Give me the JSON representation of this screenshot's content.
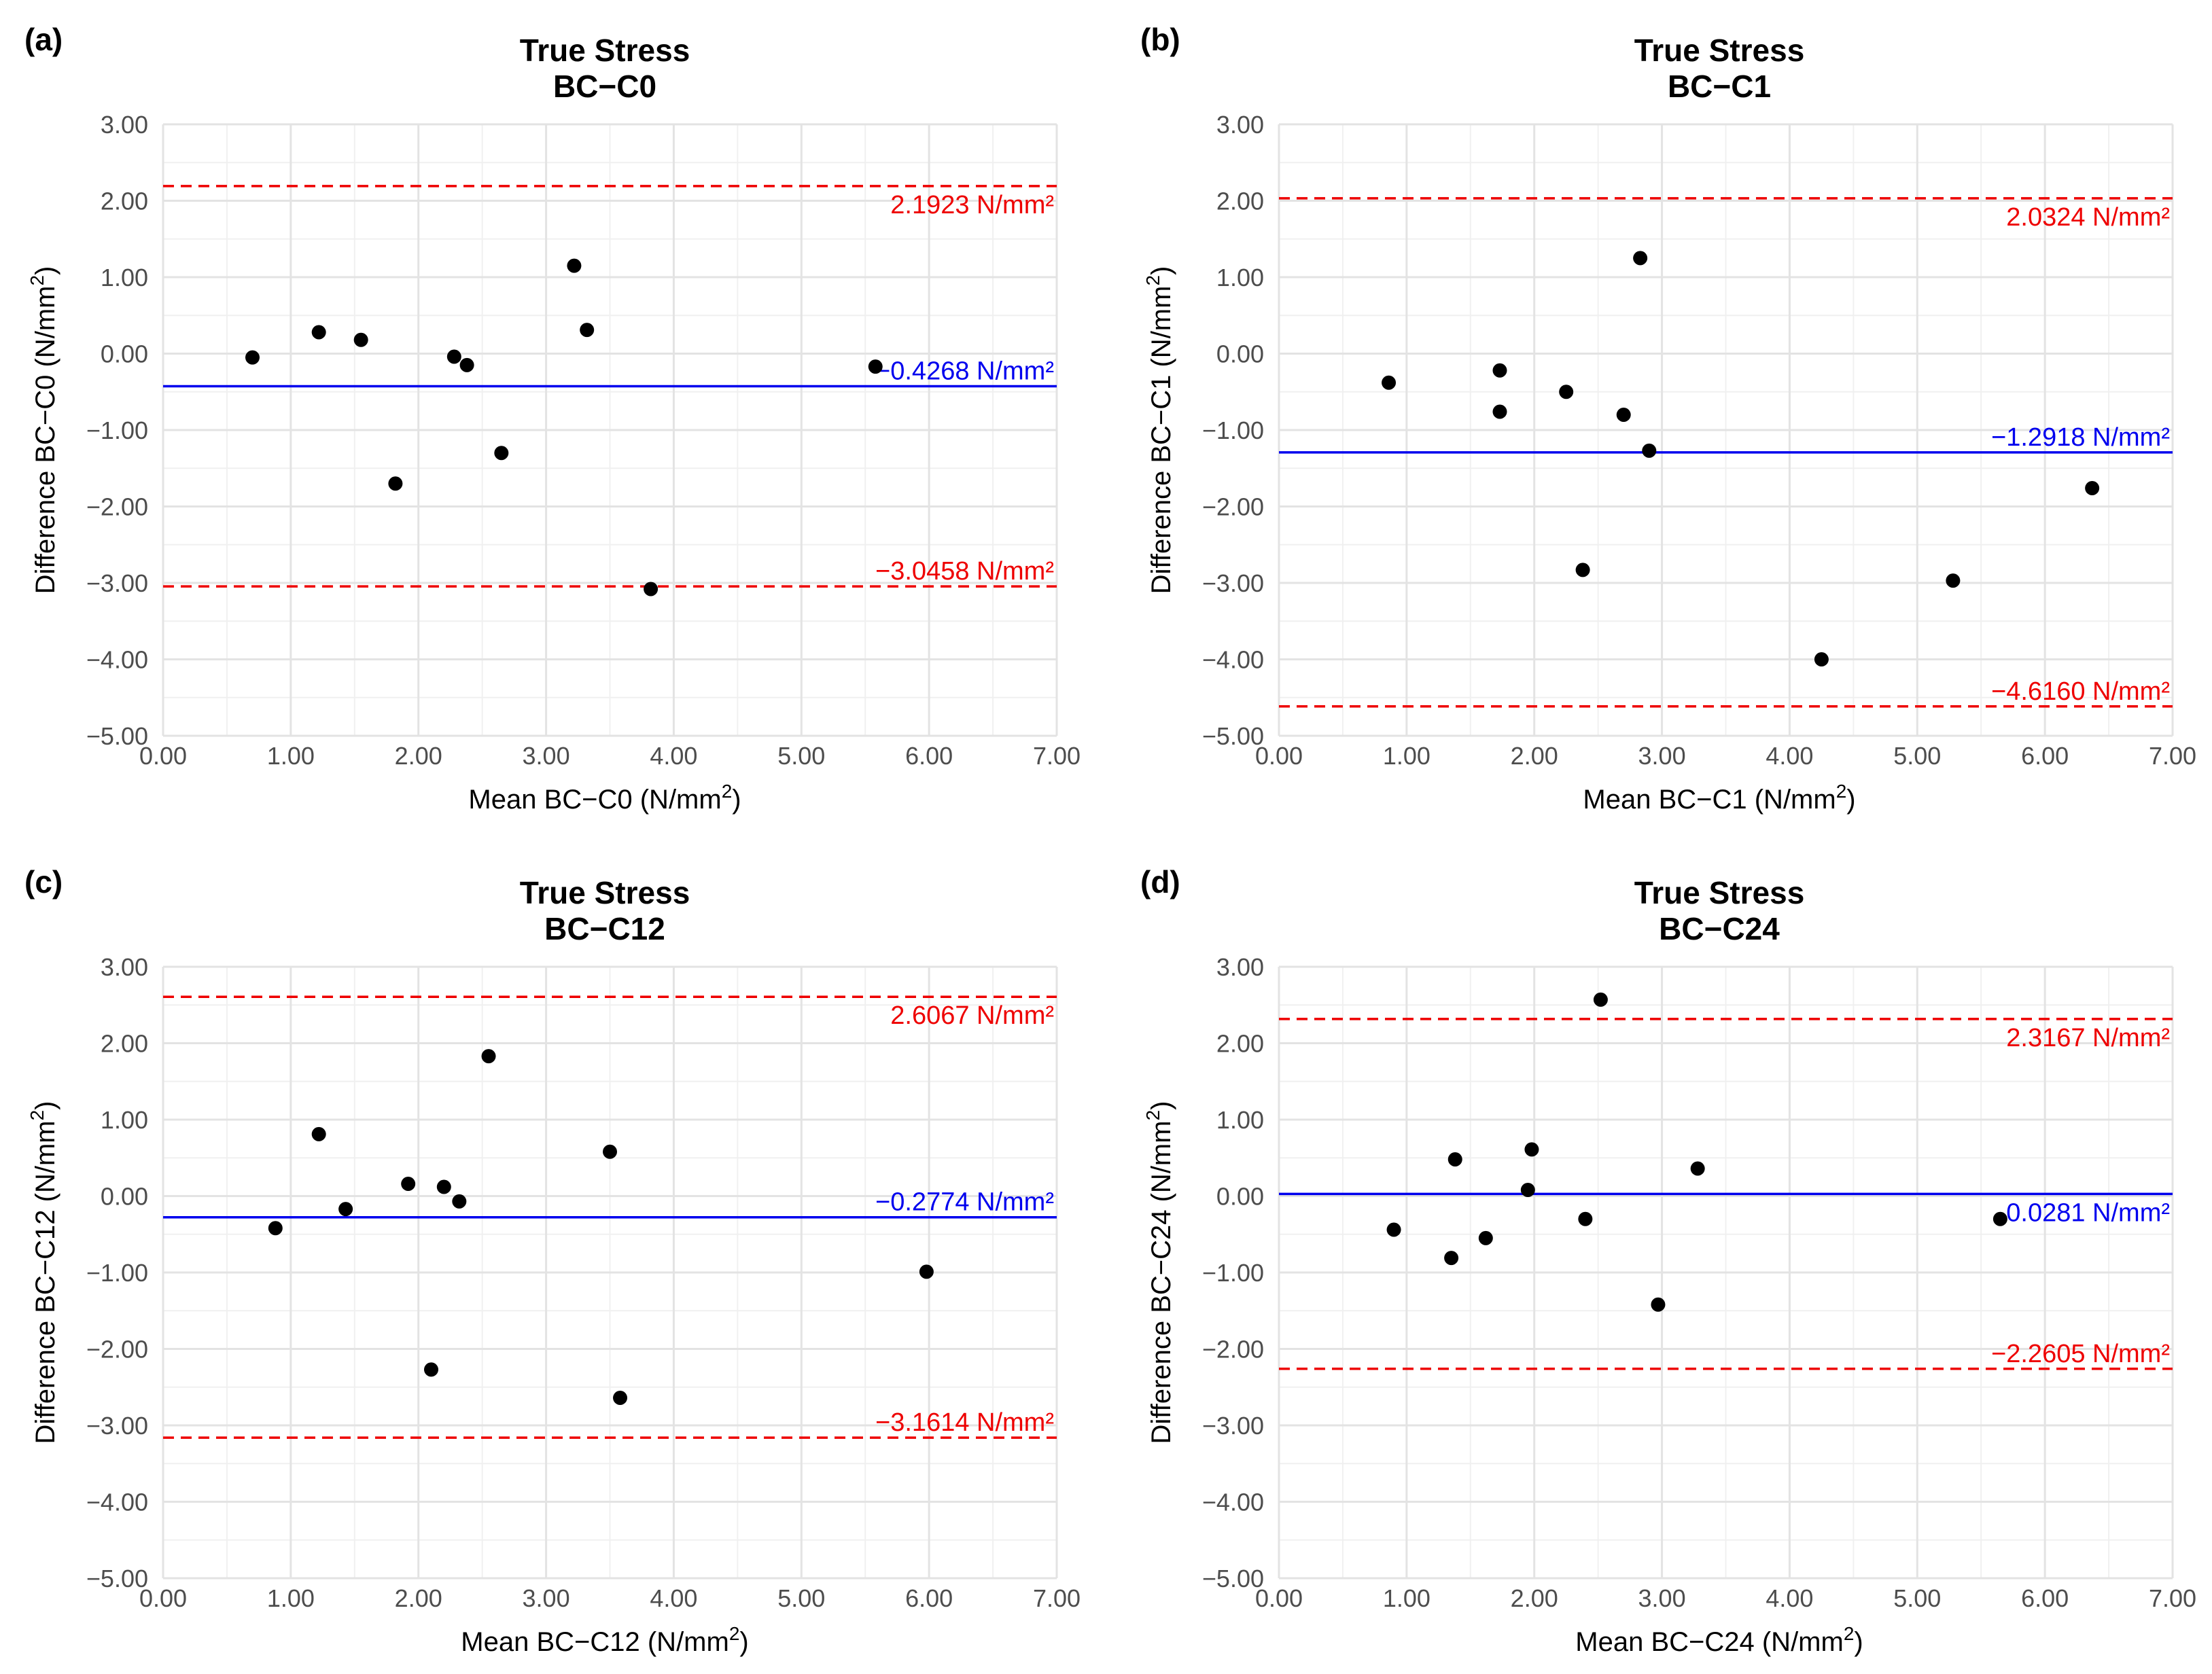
{
  "chart_data": [
    {
      "type": "scatter",
      "panel_label": "(a)",
      "title": "True Stress",
      "subtitle": "BC−C0",
      "xlabel_main": "Mean BC−C0 (N/mm",
      "ylabel_main": "Difference BC−C0 (N/mm",
      "unit_sup": "2",
      "unit_close": ")",
      "xlim": [
        0,
        7
      ],
      "ylim": [
        -5,
        3
      ],
      "x_ticks": [
        "0.00",
        "1.00",
        "2.00",
        "3.00",
        "4.00",
        "5.00",
        "6.00",
        "7.00"
      ],
      "y_ticks": [
        "3.00",
        "2.00",
        "1.00",
        "0.00",
        "−1.00",
        "−2.00",
        "−3.00",
        "−4.00",
        "−5.00"
      ],
      "points": [
        {
          "x": 0.7,
          "y": -0.05
        },
        {
          "x": 1.22,
          "y": 0.28
        },
        {
          "x": 1.55,
          "y": 0.18
        },
        {
          "x": 1.82,
          "y": -1.7
        },
        {
          "x": 2.28,
          "y": -0.04
        },
        {
          "x": 2.38,
          "y": -0.15
        },
        {
          "x": 2.65,
          "y": -1.3
        },
        {
          "x": 3.22,
          "y": 1.15
        },
        {
          "x": 3.32,
          "y": 0.31
        },
        {
          "x": 3.82,
          "y": -3.08
        },
        {
          "x": 5.58,
          "y": -0.17
        }
      ],
      "mean_line": {
        "value": -0.4268,
        "label": "−0.4268 N/mm²",
        "color": "#0000ee"
      },
      "upper_loa": {
        "value": 2.1923,
        "label": "2.1923 N/mm²",
        "color": "#ee0000"
      },
      "lower_loa": {
        "value": -3.0458,
        "label": "−3.0458 N/mm²",
        "color": "#ee0000"
      }
    },
    {
      "type": "scatter",
      "panel_label": "(b)",
      "title": "True Stress",
      "subtitle": "BC−C1",
      "xlabel_main": "Mean BC−C1 (N/mm",
      "ylabel_main": "Difference BC−C1 (N/mm",
      "unit_sup": "2",
      "unit_close": ")",
      "xlim": [
        0,
        7
      ],
      "ylim": [
        -5,
        3
      ],
      "x_ticks": [
        "0.00",
        "1.00",
        "2.00",
        "3.00",
        "4.00",
        "5.00",
        "6.00",
        "7.00"
      ],
      "y_ticks": [
        "3.00",
        "2.00",
        "1.00",
        "0.00",
        "−1.00",
        "−2.00",
        "−3.00",
        "−4.00",
        "−5.00"
      ],
      "points": [
        {
          "x": 0.86,
          "y": -0.38
        },
        {
          "x": 1.73,
          "y": -0.22
        },
        {
          "x": 1.73,
          "y": -0.76
        },
        {
          "x": 2.25,
          "y": -0.5
        },
        {
          "x": 2.38,
          "y": -2.83
        },
        {
          "x": 2.7,
          "y": -0.8
        },
        {
          "x": 2.83,
          "y": 1.25
        },
        {
          "x": 2.9,
          "y": -1.27
        },
        {
          "x": 4.25,
          "y": -4.0
        },
        {
          "x": 5.28,
          "y": -2.97
        },
        {
          "x": 6.37,
          "y": -1.76
        }
      ],
      "mean_line": {
        "value": -1.2918,
        "label": "−1.2918 N/mm²",
        "color": "#0000ee"
      },
      "upper_loa": {
        "value": 2.0324,
        "label": "2.0324 N/mm²",
        "color": "#ee0000"
      },
      "lower_loa": {
        "value": -4.616,
        "label": "−4.6160 N/mm²",
        "color": "#ee0000"
      }
    },
    {
      "type": "scatter",
      "panel_label": "(c)",
      "title": "True Stress",
      "subtitle": "BC−C12",
      "xlabel_main": "Mean BC−C12 (N/mm",
      "ylabel_main": "Difference BC−C12 (N/mm",
      "unit_sup": "2",
      "unit_close": ")",
      "xlim": [
        0,
        7
      ],
      "ylim": [
        -5,
        3
      ],
      "x_ticks": [
        "0.00",
        "1.00",
        "2.00",
        "3.00",
        "4.00",
        "5.00",
        "6.00",
        "7.00"
      ],
      "y_ticks": [
        "3.00",
        "2.00",
        "1.00",
        "0.00",
        "−1.00",
        "−2.00",
        "−3.00",
        "−4.00",
        "−5.00"
      ],
      "points": [
        {
          "x": 0.88,
          "y": -0.42
        },
        {
          "x": 1.22,
          "y": 0.81
        },
        {
          "x": 1.43,
          "y": -0.17
        },
        {
          "x": 1.92,
          "y": 0.16
        },
        {
          "x": 2.1,
          "y": -2.27
        },
        {
          "x": 2.2,
          "y": 0.12
        },
        {
          "x": 2.32,
          "y": -0.07
        },
        {
          "x": 2.55,
          "y": 1.83
        },
        {
          "x": 3.5,
          "y": 0.58
        },
        {
          "x": 3.58,
          "y": -2.64
        },
        {
          "x": 5.98,
          "y": -0.99
        }
      ],
      "mean_line": {
        "value": -0.2774,
        "label": "−0.2774 N/mm²",
        "color": "#0000ee"
      },
      "upper_loa": {
        "value": 2.6067,
        "label": "2.6067 N/mm²",
        "color": "#ee0000"
      },
      "lower_loa": {
        "value": -3.1614,
        "label": "−3.1614 N/mm²",
        "color": "#ee0000"
      }
    },
    {
      "type": "scatter",
      "panel_label": "(d)",
      "title": "True Stress",
      "subtitle": "BC−C24",
      "xlabel_main": "Mean BC−C24 (N/mm",
      "ylabel_main": "Difference BC−C24 (N/mm",
      "unit_sup": "2",
      "unit_close": ")",
      "xlim": [
        0,
        7
      ],
      "ylim": [
        -5,
        3
      ],
      "x_ticks": [
        "0.00",
        "1.00",
        "2.00",
        "3.00",
        "4.00",
        "5.00",
        "6.00",
        "7.00"
      ],
      "y_ticks": [
        "3.00",
        "2.00",
        "1.00",
        "0.00",
        "−1.00",
        "−2.00",
        "−3.00",
        "−4.00",
        "−5.00"
      ],
      "points": [
        {
          "x": 0.9,
          "y": -0.44
        },
        {
          "x": 1.35,
          "y": -0.81
        },
        {
          "x": 1.38,
          "y": 0.48
        },
        {
          "x": 1.62,
          "y": -0.55
        },
        {
          "x": 1.95,
          "y": 0.08
        },
        {
          "x": 1.98,
          "y": 0.61
        },
        {
          "x": 2.4,
          "y": -0.3
        },
        {
          "x": 2.52,
          "y": 2.57
        },
        {
          "x": 2.97,
          "y": -1.42
        },
        {
          "x": 3.28,
          "y": 0.36
        },
        {
          "x": 5.65,
          "y": -0.3
        }
      ],
      "mean_line": {
        "value": 0.0281,
        "label": "0.0281 N/mm²",
        "color": "#0000ee"
      },
      "upper_loa": {
        "value": 2.3167,
        "label": "2.3167 N/mm²",
        "color": "#ee0000"
      },
      "lower_loa": {
        "value": -2.2605,
        "label": "−2.2605 N/mm²",
        "color": "#ee0000"
      }
    }
  ]
}
